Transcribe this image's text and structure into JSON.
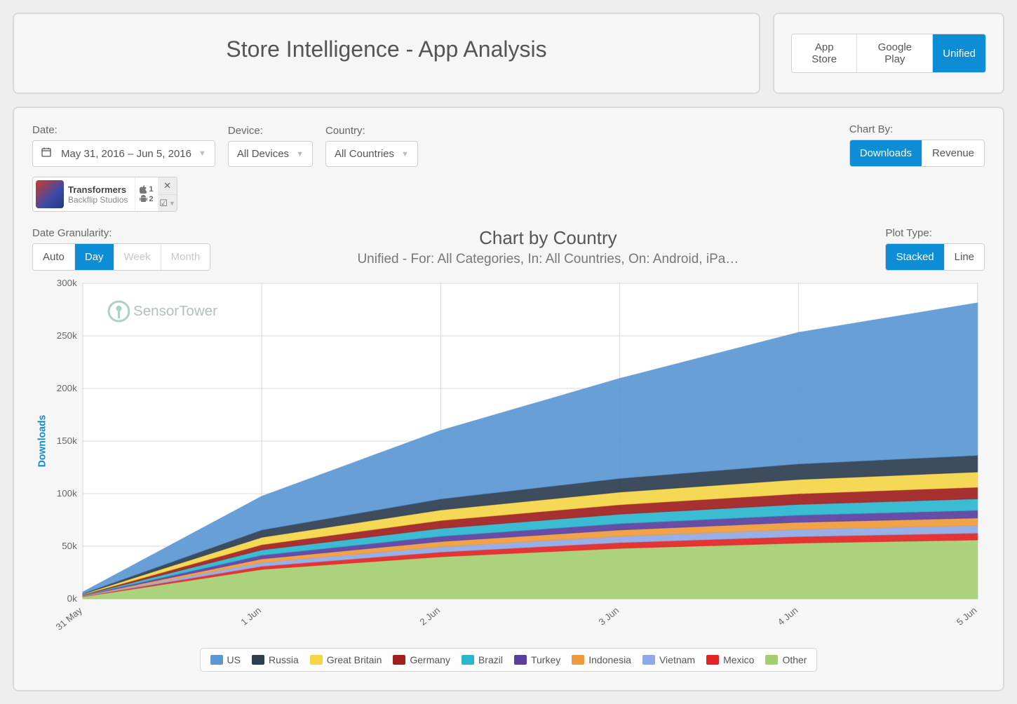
{
  "header": {
    "title": "Store Intelligence - App Analysis",
    "store_tabs": [
      {
        "label": "App Store",
        "selected": false
      },
      {
        "label": "Google Play",
        "selected": false
      },
      {
        "label": "Unified",
        "selected": true
      }
    ]
  },
  "filters": {
    "date_label": "Date:",
    "date_range": "May 31, 2016 – Jun 5, 2016",
    "device_label": "Device:",
    "device_value": "All Devices",
    "country_label": "Country:",
    "country_value": "All Countries",
    "chart_by_label": "Chart By:",
    "chart_by": [
      {
        "label": "Downloads",
        "selected": true
      },
      {
        "label": "Revenue",
        "selected": false
      }
    ]
  },
  "app": {
    "name": "Transformers",
    "publisher": "Backflip Studios",
    "platform_ios_rank": "1",
    "platform_android_rank": "2"
  },
  "granularity": {
    "label": "Date Granularity:",
    "options": [
      {
        "label": "Auto",
        "selected": false,
        "disabled": false
      },
      {
        "label": "Day",
        "selected": true,
        "disabled": false
      },
      {
        "label": "Week",
        "selected": false,
        "disabled": true
      },
      {
        "label": "Month",
        "selected": false,
        "disabled": true
      }
    ]
  },
  "plot_type": {
    "label": "Plot Type:",
    "options": [
      {
        "label": "Stacked",
        "selected": true
      },
      {
        "label": "Line",
        "selected": false
      }
    ]
  },
  "chart": {
    "title": "Chart by Country",
    "subtitle": "Unified - For: All Categories, In: All Countries, On: Android, iPa…",
    "ylabel": "Downloads",
    "watermark": "SensorTower",
    "type": "stacked-area",
    "x_categories": [
      "31 May",
      "1 Jun",
      "2 Jun",
      "3 Jun",
      "4 Jun",
      "5 Jun"
    ],
    "y_ticks": [
      0,
      50000,
      100000,
      150000,
      200000,
      250000,
      300000
    ],
    "y_tick_labels": [
      "0k",
      "50k",
      "100k",
      "150k",
      "200k",
      "250k",
      "300k"
    ],
    "ylim": [
      0,
      300000
    ],
    "background_color": "#ffffff",
    "grid_color": "#d9d9d9",
    "x_label_fontsize": 13,
    "y_label_fontsize": 13,
    "title_fontsize": 26,
    "subtitle_fontsize": 19,
    "series": [
      {
        "name": "Other",
        "color": "#a5ce72",
        "values": [
          2000,
          28000,
          40000,
          48000,
          53000,
          56000
        ]
      },
      {
        "name": "Mexico",
        "color": "#e22424",
        "values": [
          300,
          3000,
          4500,
          5500,
          6200,
          6500
        ]
      },
      {
        "name": "Vietnam",
        "color": "#8fa9e6",
        "values": [
          300,
          3500,
          5000,
          6000,
          6800,
          7200
        ]
      },
      {
        "name": "Indonesia",
        "color": "#f09b3b",
        "values": [
          300,
          3500,
          5000,
          6000,
          6800,
          7200
        ]
      },
      {
        "name": "Turkey",
        "color": "#5a3e9e",
        "values": [
          300,
          3500,
          5000,
          6000,
          6800,
          7200
        ]
      },
      {
        "name": "Brazil",
        "color": "#2bb6cf",
        "values": [
          400,
          5000,
          7500,
          9000,
          10200,
          11000
        ]
      },
      {
        "name": "Germany",
        "color": "#a0201f",
        "values": [
          400,
          5000,
          7500,
          9000,
          10200,
          11000
        ]
      },
      {
        "name": "Great Britain",
        "color": "#f4d648",
        "values": [
          500,
          7000,
          10000,
          12000,
          13500,
          14500
        ]
      },
      {
        "name": "Russia",
        "color": "#2c3e50",
        "values": [
          500,
          7000,
          10500,
          13000,
          14800,
          15800
        ]
      },
      {
        "name": "US",
        "color": "#5b97d4",
        "values": [
          1500,
          32000,
          65000,
          95000,
          125000,
          145000
        ]
      }
    ],
    "legend_order": [
      "US",
      "Russia",
      "Great Britain",
      "Germany",
      "Brazil",
      "Turkey",
      "Indonesia",
      "Vietnam",
      "Mexico",
      "Other"
    ]
  }
}
